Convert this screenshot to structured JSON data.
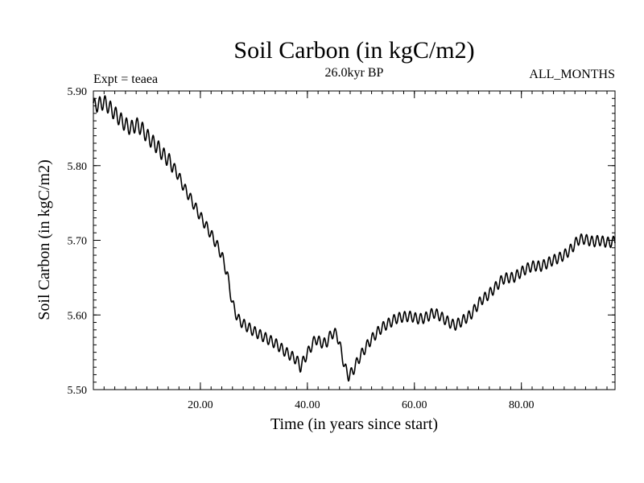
{
  "chart_data": {
    "type": "line",
    "title": "Soil Carbon (in kgC/m2)",
    "subtitle": "26.0kyr BP",
    "left_note": "Expt = teaea",
    "right_note": "ALL_MONTHS",
    "xlabel": "Time (in years since start)",
    "ylabel": "Soil Carbon (in kgC/m2)",
    "xlim": [
      0,
      97.5
    ],
    "ylim": [
      5.5,
      5.9
    ],
    "x_ticks": [
      {
        "value": 20,
        "label": "20.00"
      },
      {
        "value": 40,
        "label": "40.00"
      },
      {
        "value": 60,
        "label": "60.00"
      },
      {
        "value": 80,
        "label": "80.00"
      }
    ],
    "y_ticks": [
      {
        "value": 5.5,
        "label": "5.50"
      },
      {
        "value": 5.6,
        "label": "5.60"
      },
      {
        "value": 5.7,
        "label": "5.70"
      },
      {
        "value": 5.8,
        "label": "5.80"
      },
      {
        "value": 5.9,
        "label": "5.90"
      }
    ],
    "grid": false,
    "series": [
      {
        "name": "Soil Carbon",
        "seasonal_amplitude": 0.007,
        "points": [
          [
            0,
            5.88
          ],
          [
            1,
            5.882
          ],
          [
            2,
            5.885
          ],
          [
            3,
            5.878
          ],
          [
            4,
            5.87
          ],
          [
            5,
            5.862
          ],
          [
            6,
            5.855
          ],
          [
            7,
            5.85
          ],
          [
            8,
            5.855
          ],
          [
            9,
            5.85
          ],
          [
            10,
            5.84
          ],
          [
            11,
            5.832
          ],
          [
            12,
            5.825
          ],
          [
            13,
            5.815
          ],
          [
            14,
            5.808
          ],
          [
            15,
            5.798
          ],
          [
            16,
            5.785
          ],
          [
            17,
            5.77
          ],
          [
            18,
            5.758
          ],
          [
            19,
            5.745
          ],
          [
            20,
            5.732
          ],
          [
            21,
            5.72
          ],
          [
            22,
            5.708
          ],
          [
            23,
            5.695
          ],
          [
            24,
            5.68
          ],
          [
            25,
            5.655
          ],
          [
            26,
            5.615
          ],
          [
            27,
            5.595
          ],
          [
            28,
            5.588
          ],
          [
            29,
            5.583
          ],
          [
            30,
            5.578
          ],
          [
            31,
            5.574
          ],
          [
            32,
            5.57
          ],
          [
            33,
            5.566
          ],
          [
            34,
            5.562
          ],
          [
            35,
            5.556
          ],
          [
            36,
            5.55
          ],
          [
            37,
            5.545
          ],
          [
            38,
            5.54
          ],
          [
            38.7,
            5.53
          ],
          [
            39.5,
            5.542
          ],
          [
            40.5,
            5.555
          ],
          [
            41.5,
            5.568
          ],
          [
            42.5,
            5.563
          ],
          [
            43.5,
            5.562
          ],
          [
            44.5,
            5.575
          ],
          [
            45.5,
            5.575
          ],
          [
            46.2,
            5.555
          ],
          [
            47,
            5.53
          ],
          [
            47.7,
            5.518
          ],
          [
            48.5,
            5.525
          ],
          [
            49.5,
            5.54
          ],
          [
            50.5,
            5.552
          ],
          [
            51.5,
            5.563
          ],
          [
            52.5,
            5.572
          ],
          [
            53.5,
            5.58
          ],
          [
            54.5,
            5.586
          ],
          [
            55.5,
            5.59
          ],
          [
            56.5,
            5.595
          ],
          [
            57.5,
            5.597
          ],
          [
            58.5,
            5.598
          ],
          [
            59.5,
            5.598
          ],
          [
            60.5,
            5.595
          ],
          [
            61.5,
            5.595
          ],
          [
            62.5,
            5.598
          ],
          [
            63.5,
            5.603
          ],
          [
            64.5,
            5.6
          ],
          [
            65.5,
            5.595
          ],
          [
            66.5,
            5.59
          ],
          [
            67.5,
            5.586
          ],
          [
            68.5,
            5.59
          ],
          [
            69.5,
            5.595
          ],
          [
            70.5,
            5.6
          ],
          [
            71.5,
            5.61
          ],
          [
            72.5,
            5.62
          ],
          [
            73.5,
            5.625
          ],
          [
            74.5,
            5.632
          ],
          [
            75.5,
            5.64
          ],
          [
            76.5,
            5.648
          ],
          [
            77.5,
            5.65
          ],
          [
            78.5,
            5.65
          ],
          [
            79.5,
            5.655
          ],
          [
            80.5,
            5.66
          ],
          [
            81.5,
            5.664
          ],
          [
            82.5,
            5.666
          ],
          [
            83.5,
            5.665
          ],
          [
            84.5,
            5.668
          ],
          [
            85.5,
            5.672
          ],
          [
            86.5,
            5.675
          ],
          [
            87.5,
            5.678
          ],
          [
            88.5,
            5.683
          ],
          [
            89.5,
            5.69
          ],
          [
            90.5,
            5.7
          ],
          [
            91.5,
            5.702
          ],
          [
            92.5,
            5.7
          ],
          [
            93.5,
            5.698
          ],
          [
            94.5,
            5.7
          ],
          [
            95.5,
            5.698
          ],
          [
            96.5,
            5.697
          ],
          [
            97.5,
            5.699
          ]
        ]
      }
    ]
  }
}
